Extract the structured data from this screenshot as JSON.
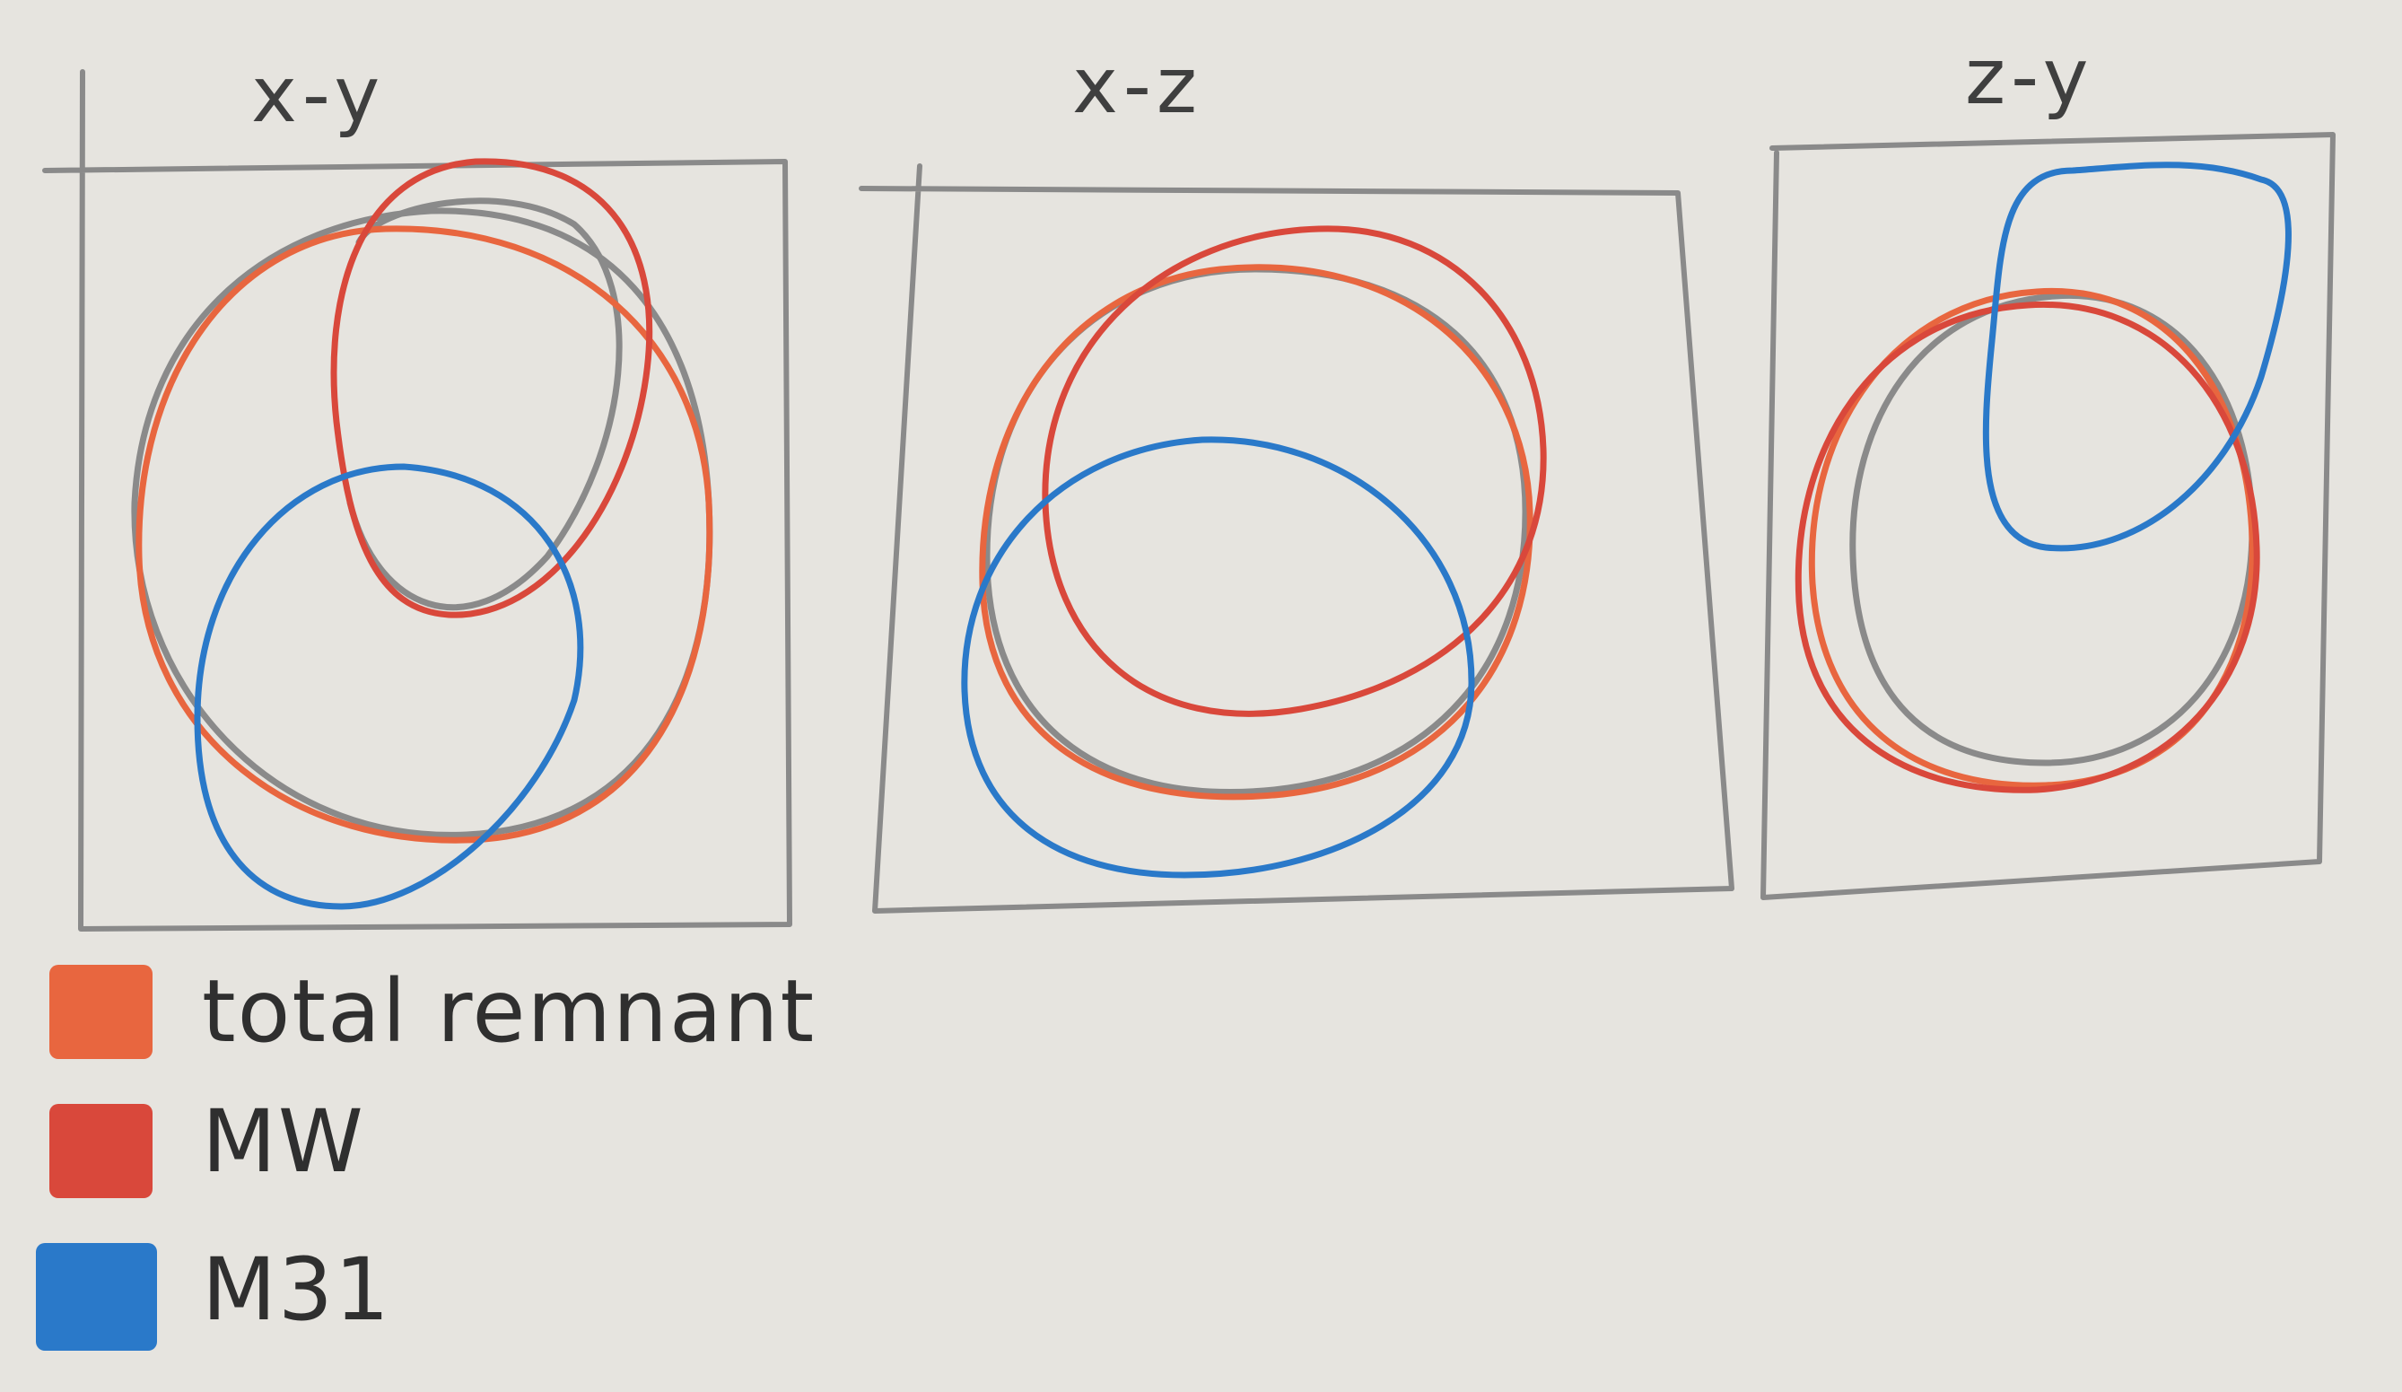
{
  "panels": [
    {
      "title": "x-y"
    },
    {
      "title": "x-z"
    },
    {
      "title": "z-y"
    }
  ],
  "legend": [
    {
      "label": "total remnant",
      "color": "#e8663f"
    },
    {
      "label": "MW",
      "color": "#d9483b"
    },
    {
      "label": "M31",
      "color": "#2a79c9"
    }
  ],
  "colors": {
    "pencil": "#8a8a8a",
    "remnant": "#e8663f",
    "mw": "#d9483b",
    "m31": "#2a79c9",
    "paper": "#e6e4df"
  }
}
